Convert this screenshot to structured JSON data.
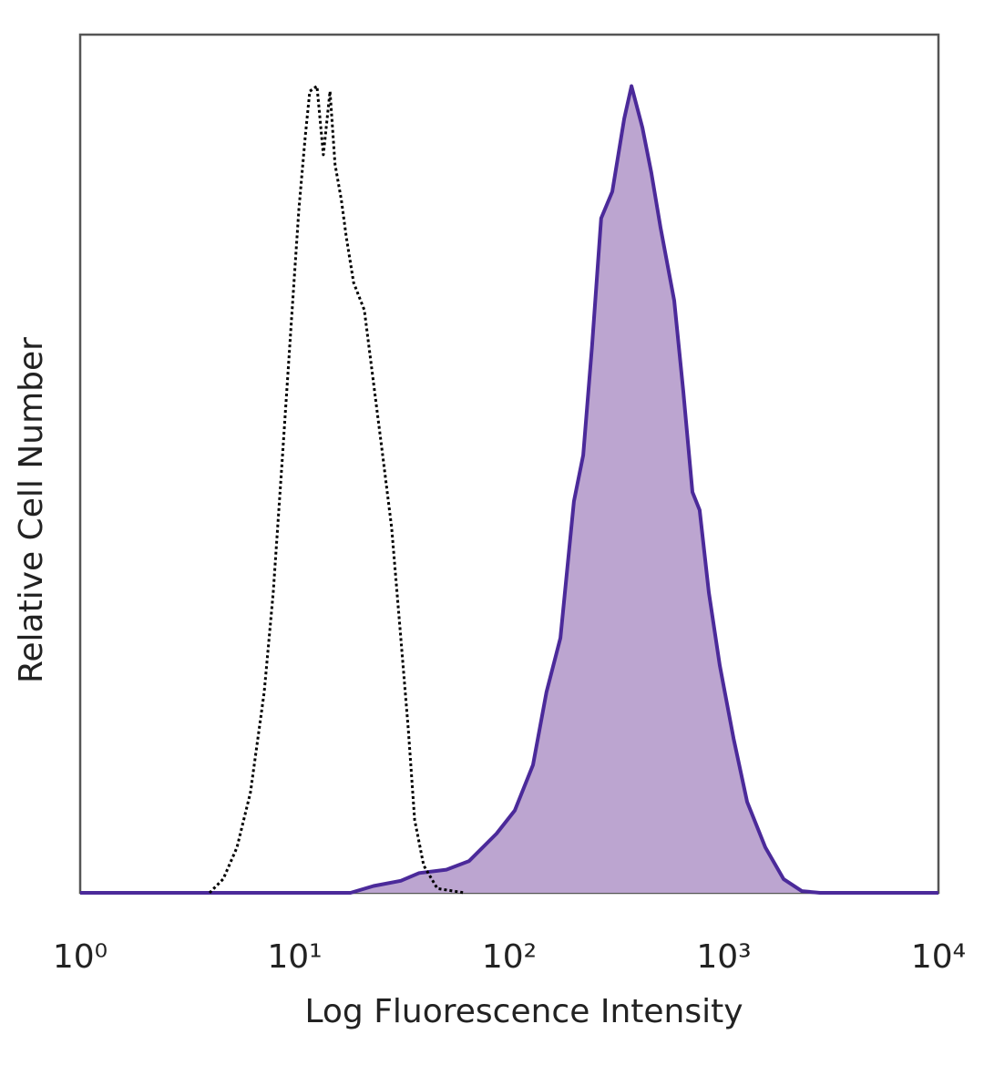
{
  "chart_data": {
    "type": "line",
    "xlabel": "Log Fluorescence Intensity",
    "ylabel": "Relative Cell Number",
    "xscale": "log",
    "xlim": [
      1,
      10000
    ],
    "ylim": [
      0,
      100
    ],
    "xticks": [
      {
        "value": 1,
        "label": "10⁰"
      },
      {
        "value": 10,
        "label": "10¹"
      },
      {
        "value": 100,
        "label": "10²"
      },
      {
        "value": 1000,
        "label": "10³"
      },
      {
        "value": 10000,
        "label": "10⁴"
      }
    ],
    "series": [
      {
        "color": "#4b2a9a",
        "fill": "#bca5d0",
        "x": [
          1,
          18.2,
          23.3,
          31.2,
          38.0,
          50.9,
          65.0,
          87.2,
          106,
          129,
          149,
          173,
          200,
          221,
          243,
          268,
          302,
          343,
          371,
          417,
          459,
          507,
          587,
          647,
          714,
          771,
          851,
          957,
          1109,
          1283,
          1560,
          1897,
          2307,
          2805,
          10000
        ],
        "values": [
          0,
          0,
          0.8,
          1.4,
          2.3,
          2.7,
          3.7,
          6.9,
          9.6,
          14.9,
          23.4,
          29.7,
          45.6,
          51.0,
          63.7,
          78.6,
          81.7,
          90.2,
          94.0,
          89.2,
          83.9,
          77.5,
          69.0,
          58.4,
          46.7,
          44.6,
          35.0,
          26.5,
          18.0,
          10.6,
          5.3,
          1.6,
          0.2,
          0,
          0
        ]
      },
      {
        "color": "#000000",
        "dash": true,
        "x": [
          4.01,
          4.64,
          5.38,
          6.22,
          7.21,
          7.94,
          8.77,
          9.66,
          10.45,
          11.19,
          11.75,
          12.7,
          13.6,
          14.6,
          15.4,
          16.5,
          17.4,
          18.8,
          21.1,
          23.3,
          25.7,
          28.3,
          31.2,
          33.8,
          36.2,
          39.9,
          46.2,
          61.9
        ],
        "values": [
          0,
          1.6,
          5.3,
          11.7,
          23.4,
          35.0,
          51.0,
          66.9,
          79.6,
          88.1,
          93.4,
          94.0,
          86.0,
          93.4,
          84.9,
          80.7,
          76.4,
          71.1,
          67.9,
          59.4,
          51.0,
          42.5,
          29.7,
          19.1,
          8.5,
          3.2,
          0.5,
          0
        ]
      }
    ]
  }
}
